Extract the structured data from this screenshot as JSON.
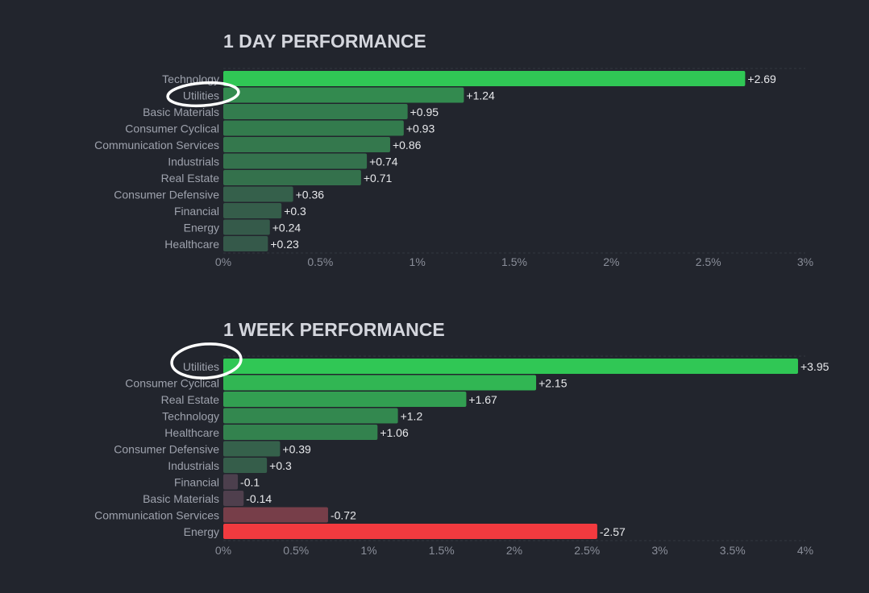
{
  "chart_data": [
    {
      "type": "bar",
      "orientation": "horizontal",
      "title": "1 DAY PERFORMANCE",
      "categories": [
        "Technology",
        "Utilities",
        "Basic Materials",
        "Consumer Cyclical",
        "Communication Services",
        "Industrials",
        "Real Estate",
        "Consumer Defensive",
        "Financial",
        "Energy",
        "Healthcare"
      ],
      "values": [
        2.69,
        1.24,
        0.95,
        0.93,
        0.86,
        0.74,
        0.71,
        0.36,
        0.3,
        0.24,
        0.23
      ],
      "value_labels": [
        "+2.69",
        "+1.24",
        "+0.95",
        "+0.93",
        "+0.86",
        "+0.74",
        "+0.71",
        "+0.36",
        "+0.3",
        "+0.24",
        "+0.23"
      ],
      "xlim": [
        0,
        3
      ],
      "x_ticks": [
        0,
        0.5,
        1,
        1.5,
        2,
        2.5,
        3
      ],
      "x_tick_labels": [
        "0%",
        "0.5%",
        "1%",
        "1.5%",
        "2%",
        "2.5%",
        "3%"
      ],
      "highlighted_category": "Utilities"
    },
    {
      "type": "bar",
      "orientation": "horizontal",
      "title": "1 WEEK PERFORMANCE",
      "categories": [
        "Utilities",
        "Consumer Cyclical",
        "Real Estate",
        "Technology",
        "Healthcare",
        "Consumer Defensive",
        "Industrials",
        "Financial",
        "Basic Materials",
        "Communication Services",
        "Energy"
      ],
      "values": [
        3.95,
        2.15,
        1.67,
        1.2,
        1.06,
        0.39,
        0.3,
        -0.1,
        -0.14,
        -0.72,
        -2.57
      ],
      "value_labels": [
        "+3.95",
        "+2.15",
        "+1.67",
        "+1.2",
        "+1.06",
        "+0.39",
        "+0.3",
        "-0.1",
        "-0.14",
        "-0.72",
        "-2.57"
      ],
      "xlim": [
        0,
        4
      ],
      "x_ticks": [
        0,
        0.5,
        1,
        1.5,
        2,
        2.5,
        3,
        3.5,
        4
      ],
      "x_tick_labels": [
        "0%",
        "0.5%",
        "1%",
        "1.5%",
        "2%",
        "2.5%",
        "3%",
        "3.5%",
        "4%"
      ],
      "bar_length": "absolute value",
      "highlighted_category": "Utilities"
    }
  ],
  "colors": {
    "background": "#22252d",
    "positive_strong": "#30c755",
    "positive_weak": "#35584a",
    "negative_weak": "#4c3f4d",
    "negative_strong": "#f23a3f",
    "highlight_circle": "#ffffff"
  }
}
